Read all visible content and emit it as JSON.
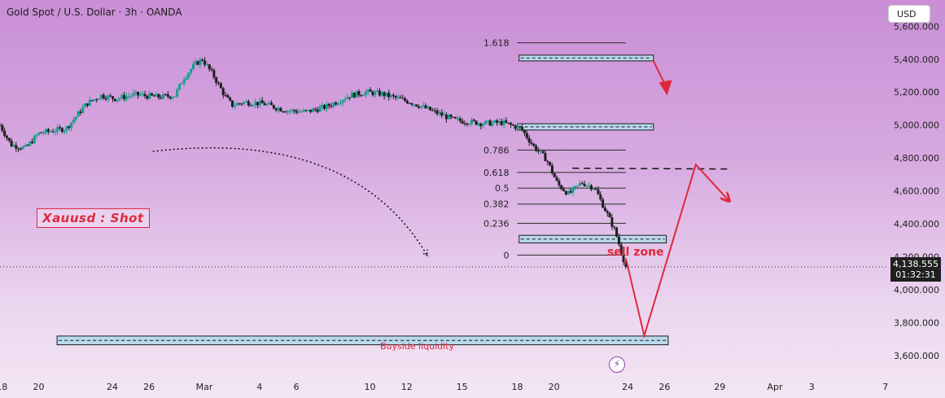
{
  "header": {
    "title": "Gold Spot / U.S. Dollar · 3h · OANDA",
    "currency_button": "USD"
  },
  "colors": {
    "bull": "#12a08c",
    "bear": "#1e1e1e",
    "accent_red": "#e0283c",
    "zone_fill": "#b9d9ec"
  },
  "icons": [
    "lightning-icon",
    "arrow-down-icon"
  ],
  "chart_data": {
    "type": "candlestick",
    "title": "Gold Spot / U.S. Dollar · 3h · OANDA",
    "y_axis": {
      "ticks": [
        "5,600.000",
        "5,400.000",
        "5,200.000",
        "5,000.000",
        "4,800.000",
        "4,600.000",
        "4,400.000",
        "4,200.000",
        "4,000.000",
        "3,800.000",
        "3,600.000"
      ],
      "tick_values": [
        5600,
        5400,
        5200,
        5000,
        4800,
        4600,
        4400,
        4200,
        4000,
        3800,
        3600
      ],
      "range": [
        3490,
        5760
      ],
      "position": "right"
    },
    "x_axis": {
      "ticks": [
        "18",
        "20",
        "24",
        "26",
        "Mar",
        "4",
        "6",
        "10",
        "12",
        "15",
        "18",
        "20",
        "24",
        "26",
        "29",
        "Apr",
        "3",
        "7"
      ],
      "tick_days": [
        18,
        20,
        24,
        26,
        29,
        32,
        34,
        38,
        40,
        43,
        46,
        48,
        52,
        54,
        57,
        60,
        62,
        66
      ],
      "range": [
        17.9,
        66.1
      ]
    },
    "current_price": {
      "value": "4,138.555",
      "countdown": "01:32:31",
      "y": 4138.555
    },
    "price_path": [
      [
        17.9,
        5000
      ],
      [
        18.5,
        4880
      ],
      [
        19.3,
        4860
      ],
      [
        20.0,
        4950
      ],
      [
        21.5,
        4980
      ],
      [
        22.6,
        5130
      ],
      [
        23.4,
        5180
      ],
      [
        24.2,
        5160
      ],
      [
        25.2,
        5185
      ],
      [
        26.5,
        5170
      ],
      [
        27.4,
        5180
      ],
      [
        27.9,
        5290
      ],
      [
        28.5,
        5370
      ],
      [
        28.9,
        5400
      ],
      [
        29.5,
        5300
      ],
      [
        30.1,
        5180
      ],
      [
        30.5,
        5120
      ],
      [
        31.2,
        5140
      ],
      [
        32.2,
        5130
      ],
      [
        33.4,
        5090
      ],
      [
        34.5,
        5080
      ],
      [
        35.6,
        5110
      ],
      [
        36.9,
        5180
      ],
      [
        37.8,
        5200
      ],
      [
        38.6,
        5190
      ],
      [
        40.2,
        5140
      ],
      [
        41.5,
        5080
      ],
      [
        42.6,
        5030
      ],
      [
        44.2,
        5010
      ],
      [
        45.2,
        5015
      ],
      [
        46.2,
        4980
      ],
      [
        46.9,
        4870
      ],
      [
        47.6,
        4790
      ],
      [
        48.2,
        4640
      ],
      [
        48.8,
        4580
      ],
      [
        49.5,
        4650
      ],
      [
        50.2,
        4620
      ],
      [
        50.8,
        4480
      ],
      [
        51.3,
        4360
      ],
      [
        51.6,
        4250
      ],
      [
        51.9,
        4138.555
      ]
    ],
    "fibonacci": {
      "levels": [
        {
          "label": "1.618",
          "price": 5500
        },
        {
          "label": "0.786",
          "price": 4848
        },
        {
          "label": "0.618",
          "price": 4712
        },
        {
          "label": "0.5",
          "price": 4617
        },
        {
          "label": "0.382",
          "price": 4520
        },
        {
          "label": "0.236",
          "price": 4403
        },
        {
          "label": "0",
          "price": 4210
        }
      ],
      "x_range": [
        46.0,
        51.9
      ]
    },
    "zones": [
      {
        "name": "upper",
        "x_range": [
          46.1,
          53.4
        ],
        "price_range": [
          5390,
          5425
        ]
      },
      {
        "name": "mid",
        "x_range": [
          46.0,
          53.4
        ],
        "price_range": [
          4970,
          5008
        ]
      },
      {
        "name": "sell",
        "x_range": [
          46.1,
          54.1
        ],
        "price_range": [
          4284,
          4330
        ]
      },
      {
        "name": "buyside",
        "x_range": [
          21.0,
          54.2
        ],
        "price_range": [
          3665,
          3718
        ]
      }
    ],
    "dashed_level": {
      "price": 4738,
      "x_range": [
        49.0,
        57.4
      ]
    },
    "forecast_path": [
      [
        51.9,
        4190
      ],
      [
        52.9,
        3720
      ],
      [
        55.7,
        4760
      ],
      [
        57.5,
        4540
      ]
    ],
    "arrow_down": {
      "from": [
        53.4,
        5390
      ],
      "to": [
        54.1,
        5180
      ]
    },
    "curve_arrow": {
      "from": [
        26.2,
        4840
      ],
      "control": [
        37.0,
        4980
      ],
      "to": [
        41.1,
        4210
      ]
    },
    "annotations": {
      "strategy_label": "Xauusd : Shot",
      "sell_zone_label": "sell zone",
      "buyside_label": "Buyside liquidity"
    }
  }
}
